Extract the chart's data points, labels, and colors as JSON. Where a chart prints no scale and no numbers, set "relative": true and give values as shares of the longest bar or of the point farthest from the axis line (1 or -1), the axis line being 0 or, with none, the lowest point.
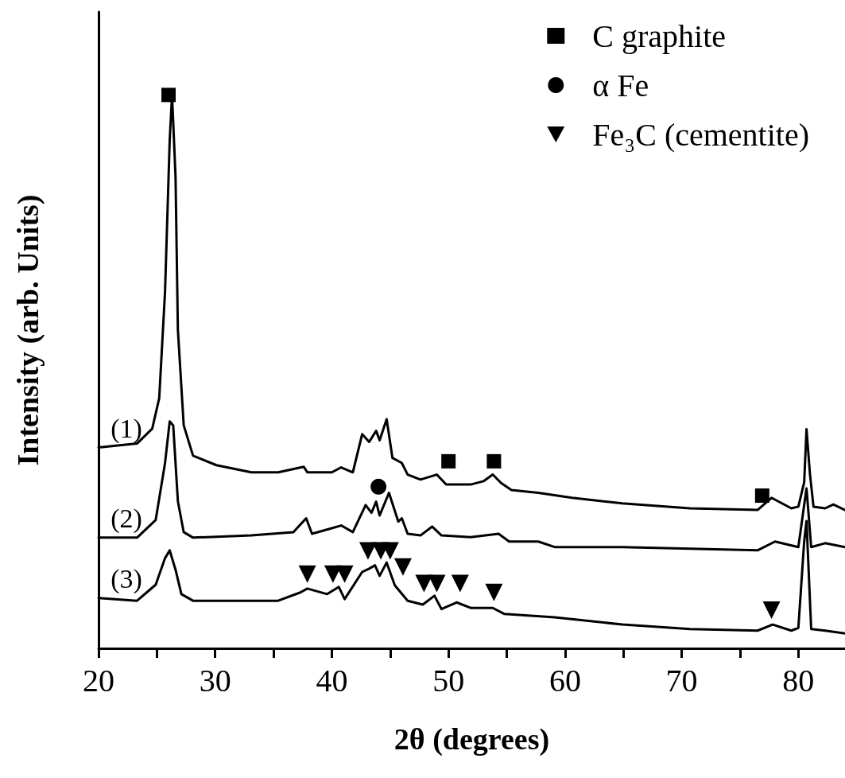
{
  "chart_data": {
    "type": "line",
    "relative": true,
    "xlabel": "2θ (degrees)",
    "ylabel": "Intensity (arb. Units)",
    "xlim": [
      20,
      84
    ],
    "xticks": [
      20,
      {
        "value": 25,
        "label": null
      },
      30,
      {
        "value": 35,
        "label": null
      },
      40,
      {
        "value": 45,
        "label": null
      },
      50,
      {
        "value": 55,
        "label": null
      },
      60,
      {
        "value": 65,
        "label": null
      },
      70,
      {
        "value": 75,
        "label": null
      },
      80
    ],
    "legend": "top right",
    "grid": false,
    "line_style": "solid",
    "series": [
      {
        "name": "(1)",
        "color": "#000000",
        "marker": "none",
        "x": [
          20,
          23.3,
          24.6,
          25.2,
          25.7,
          26.1,
          26.3,
          26.6,
          26.8,
          27.3,
          28.1,
          30.1,
          33.1,
          35.4,
          37.6,
          37.9,
          40,
          40.8,
          41.8,
          42.6,
          43.2,
          43.8,
          44.1,
          44.7,
          45.2,
          46.0,
          46.5,
          47.6,
          49.0,
          49.8,
          51.9,
          53.0,
          53.8,
          54.5,
          55.4,
          57.7,
          60.6,
          64.9,
          70.7,
          76.5,
          77.7,
          79.4,
          80.0,
          80.5,
          80.7,
          81.0,
          81.3,
          82.3,
          83.0,
          84.0
        ],
        "values": [
          0.363,
          0.37,
          0.397,
          0.452,
          0.645,
          0.919,
          1,
          0.852,
          0.576,
          0.403,
          0.348,
          0.331,
          0.318,
          0.318,
          0.328,
          0.318,
          0.318,
          0.327,
          0.318,
          0.387,
          0.373,
          0.393,
          0.376,
          0.414,
          0.344,
          0.335,
          0.314,
          0.305,
          0.314,
          0.296,
          0.296,
          0.302,
          0.314,
          0.299,
          0.286,
          0.281,
          0.272,
          0.262,
          0.253,
          0.25,
          0.272,
          0.253,
          0.256,
          0.3,
          0.396,
          0.314,
          0.256,
          0.253,
          0.26,
          0.25
        ]
      },
      {
        "name": "(2)",
        "color": "#000000",
        "marker": "none",
        "x": [
          20,
          23.3,
          24.9,
          25.7,
          26.1,
          26.4,
          26.8,
          27.3,
          28.1,
          33.1,
          36.7,
          37.8,
          38.3,
          40.0,
          40.8,
          41.8,
          42.9,
          43.4,
          43.8,
          44.1,
          44.9,
          45.7,
          46.0,
          46.5,
          47.6,
          48.6,
          49.4,
          51.9,
          54.3,
          55.2,
          57.7,
          59.1,
          64.9,
          70.7,
          76.5,
          78.0,
          80.0,
          80.5,
          80.7,
          81.1,
          82.3,
          84.0
        ],
        "values": [
          0.2,
          0.2,
          0.232,
          0.335,
          0.41,
          0.403,
          0.266,
          0.21,
          0.2,
          0.204,
          0.21,
          0.235,
          0.207,
          0.217,
          0.222,
          0.21,
          0.259,
          0.245,
          0.265,
          0.24,
          0.281,
          0.229,
          0.235,
          0.207,
          0.204,
          0.22,
          0.204,
          0.201,
          0.207,
          0.193,
          0.193,
          0.183,
          0.183,
          0.18,
          0.177,
          0.193,
          0.183,
          0.259,
          0.289,
          0.183,
          0.19,
          0.183
        ]
      },
      {
        "name": "(3)",
        "color": "#000000",
        "marker": "none",
        "x": [
          20,
          23.3,
          24.9,
          25.7,
          26.1,
          26.6,
          27.1,
          28.1,
          35.4,
          37.3,
          37.9,
          39.6,
          40.6,
          41.1,
          42.6,
          43.2,
          43.7,
          44.1,
          44.7,
          45.4,
          46.5,
          47.8,
          48.8,
          49.4,
          50.7,
          51.9,
          53.8,
          54.8,
          59.1,
          64.9,
          70.7,
          76.5,
          77.8,
          79.4,
          80.0,
          80.5,
          80.7,
          81.1,
          82.3,
          84.0
        ],
        "values": [
          0.091,
          0.086,
          0.115,
          0.163,
          0.177,
          0.142,
          0.098,
          0.086,
          0.086,
          0.101,
          0.108,
          0.098,
          0.111,
          0.089,
          0.138,
          0.144,
          0.15,
          0.131,
          0.155,
          0.114,
          0.086,
          0.079,
          0.095,
          0.071,
          0.083,
          0.073,
          0.073,
          0.062,
          0.056,
          0.043,
          0.035,
          0.032,
          0.043,
          0.032,
          0.037,
          0.193,
          0.23,
          0.035,
          0.032,
          0.027
        ]
      },
      {
        "name": "C graphite",
        "type": "scatter",
        "color": "#000000",
        "marker": "square",
        "x": [
          26.0,
          50.0,
          53.9,
          76.9
        ],
        "values": [
          1,
          0.338,
          0.338,
          0.276
        ]
      },
      {
        "name": "α Fe",
        "type": "scatter",
        "color": "#000000",
        "marker": "circle",
        "x": [
          44.0
        ],
        "values": [
          0.292
        ]
      },
      {
        "name": "Fe₃C (cementite)",
        "type": "scatter",
        "color": "#000000",
        "marker": "triangle",
        "x": [
          37.9,
          40.1,
          41.1,
          43.1,
          44.2,
          45.0,
          46.1,
          47.9,
          49.0,
          51.0,
          53.9,
          77.7
        ],
        "values": [
          0.134,
          0.134,
          0.134,
          0.176,
          0.176,
          0.176,
          0.147,
          0.117,
          0.117,
          0.117,
          0.101,
          0.069
        ]
      }
    ]
  }
}
